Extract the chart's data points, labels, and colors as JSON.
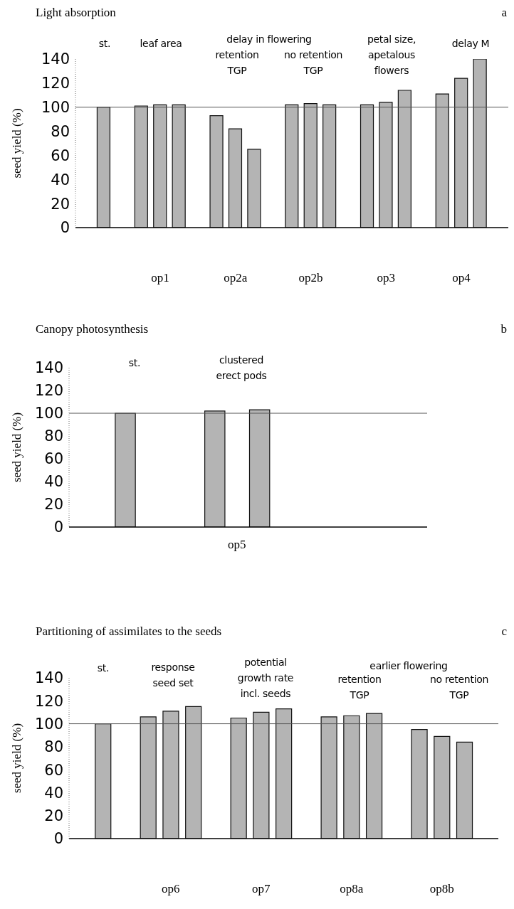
{
  "chart_data": [
    {
      "type": "bar",
      "title": "Light absorption",
      "ylabel": "seed yield (%)",
      "color": "#b4b4b4",
      "ylim": [
        0,
        140
      ],
      "yticks": [
        0,
        20,
        40,
        60,
        80,
        100,
        120,
        140
      ],
      "categories": [
        null,
        null,
        null,
        null,
        "op1",
        null,
        null,
        null,
        "op2a",
        null,
        null,
        null,
        "op2b",
        null,
        null,
        null,
        "op3",
        null,
        null,
        null,
        "op4",
        null,
        null
      ],
      "values": [
        null,
        100,
        null,
        101,
        102,
        102,
        null,
        93,
        82,
        65,
        null,
        102,
        103,
        102,
        null,
        102,
        104,
        114,
        null,
        111,
        124,
        140,
        null
      ],
      "ref_lines": [
        {
          "axis": "y",
          "value": 100
        }
      ],
      "annotations": [
        "a",
        "st.",
        "leaf area",
        "delay in flowering",
        "retention\nTGP",
        "no retention\nTGP",
        "petal size,\napetalous\nflowers",
        "delay M"
      ]
    },
    {
      "type": "bar",
      "title": "Canopy photosynthesis",
      "ylabel": "seed yield (%)",
      "color": "#b4b4b4",
      "ylim": [
        0,
        140
      ],
      "yticks": [
        0,
        20,
        40,
        60,
        80,
        100,
        120,
        140
      ],
      "categories": [
        null,
        null,
        null,
        null,
        null,
        null,
        null,
        "op5",
        null,
        null,
        null,
        null,
        null,
        null,
        null,
        null
      ],
      "values": [
        null,
        null,
        100,
        null,
        null,
        null,
        102,
        null,
        103,
        null,
        null,
        null,
        null,
        null,
        null,
        null
      ],
      "ref_lines": [
        {
          "axis": "y",
          "value": 100
        }
      ],
      "annotations": [
        "b",
        "st.",
        "clustered\nerect pods"
      ]
    },
    {
      "type": "bar",
      "title": "Partitioning of assimilates to the seeds",
      "ylabel": "seed yield (%)",
      "color": "#b4b4b4",
      "ylim": [
        0,
        140
      ],
      "yticks": [
        0,
        20,
        40,
        60,
        80,
        100,
        120,
        140
      ],
      "categories": [
        null,
        null,
        null,
        null,
        "op6",
        null,
        null,
        null,
        "op7",
        null,
        null,
        null,
        "op8a",
        null,
        null,
        null,
        "op8b",
        null,
        null
      ],
      "values": [
        null,
        100,
        null,
        106,
        111,
        115,
        null,
        105,
        110,
        113,
        null,
        106,
        107,
        109,
        null,
        95,
        89,
        84,
        null
      ],
      "ref_lines": [
        {
          "axis": "y",
          "value": 100
        }
      ],
      "annotations": [
        "c",
        "st.",
        "response\nseed set",
        "potential\ngrowth rate\nincl. seeds",
        "earlier flowering",
        "retention\nTGP",
        "no retention\nTGP"
      ]
    }
  ]
}
